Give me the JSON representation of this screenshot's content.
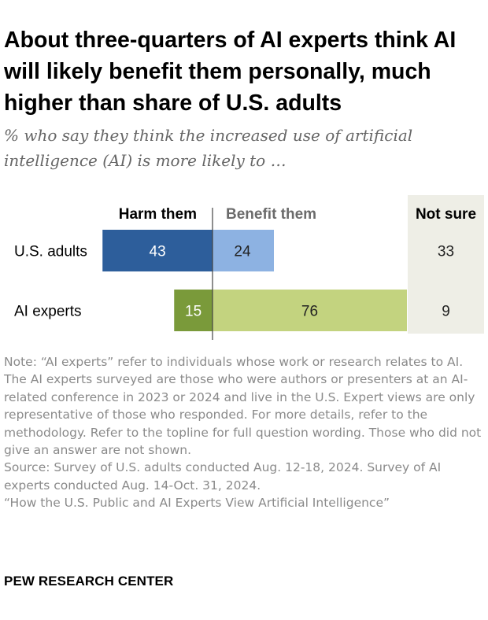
{
  "title": "About three-quarters of AI experts think AI will likely benefit them personally, much higher than share of U.S. adults",
  "subtitle": "% who say they think the increased use of artificial intelligence (AI) is more likely to …",
  "chart_data": {
    "type": "bar",
    "orientation": "horizontal",
    "stacking": "diverging",
    "categories": [
      "U.S. adults",
      "AI experts"
    ],
    "series": [
      {
        "name": "Harm them",
        "values": [
          43,
          15
        ],
        "colors": [
          "#2d5e9b",
          "#7a9a3a"
        ]
      },
      {
        "name": "Benefit them",
        "values": [
          24,
          76
        ],
        "colors": [
          "#8db2e2",
          "#c3d37f"
        ]
      },
      {
        "name": "Not sure",
        "values": [
          33,
          9
        ]
      }
    ],
    "column_headers": {
      "harm": "Harm them",
      "benefit": "Benefit them",
      "not_sure": "Not sure"
    },
    "colors": {
      "harm_header": "#000000",
      "benefit_header": "#6b6b6b",
      "not_sure_bg": "#eeeee6",
      "axis_line": "#444444",
      "label_light": "#ffffff",
      "label_dark": "#222222"
    }
  },
  "notes": {
    "note": "Note: “AI experts” refer to individuals whose work or research relates to AI. The AI experts surveyed are those who were authors or presenters at an AI-related conference in 2023 or 2024 and live in the U.S. Expert views are only representative of those who responded. For more details, refer to the methodology. Refer to the topline for full question wording. Those who did not give an answer are not shown.",
    "source": "Source: Survey of U.S. adults conducted Aug. 12-18, 2024. Survey of AI experts conducted Aug. 14-Oct. 31, 2024.",
    "report": "“How the U.S. Public and AI Experts View Artificial Intelligence”"
  },
  "branding": {
    "logo": "PEW RESEARCH CENTER"
  }
}
